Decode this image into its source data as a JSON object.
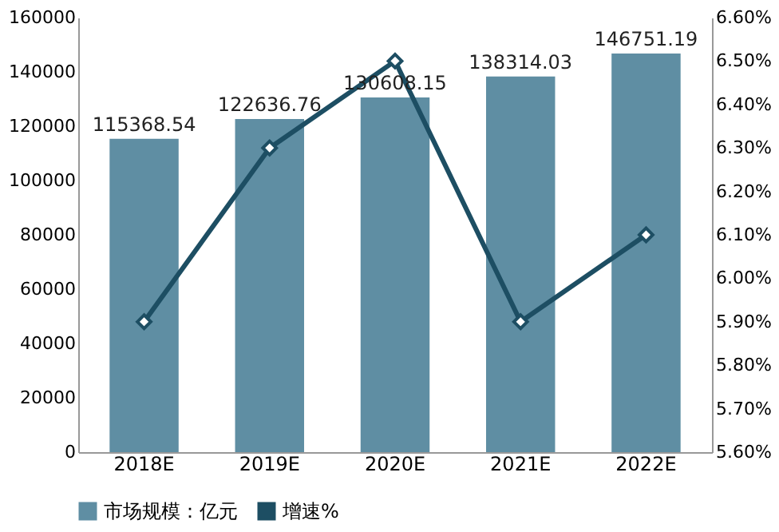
{
  "chart_data": {
    "type": "bar",
    "categories": [
      "2018E",
      "2019E",
      "2020E",
      "2021E",
      "2022E"
    ],
    "series": [
      {
        "name": "市场规模：亿元",
        "color": "#5f8ea3",
        "values": [
          115368.54,
          122636.76,
          130608.15,
          138314.03,
          146751.19
        ],
        "value_labels": [
          "115368.54",
          "122636.76",
          "130608.15",
          "138314.03",
          "146751.19"
        ]
      },
      {
        "name": "增速%",
        "type": "line",
        "axis": "y2",
        "color": "#1d4e63",
        "marker": "diamond",
        "values": [
          5.9,
          6.3,
          6.5,
          5.9,
          6.1
        ]
      }
    ],
    "ylim": [
      0,
      160000
    ],
    "yticks": [
      0,
      20000,
      40000,
      60000,
      80000,
      100000,
      120000,
      140000,
      160000
    ],
    "y2lim": [
      5.6,
      6.6
    ],
    "y2ticks": [
      {
        "value": 5.6,
        "label": "5.60%"
      },
      {
        "value": 5.7,
        "label": "5.70%"
      },
      {
        "value": 5.8,
        "label": "5.80%"
      },
      {
        "value": 5.9,
        "label": "5.90%"
      },
      {
        "value": 6.0,
        "label": "6.00%"
      },
      {
        "value": 6.1,
        "label": "6.10%"
      },
      {
        "value": 6.2,
        "label": "6.20%"
      },
      {
        "value": 6.3,
        "label": "6.30%"
      },
      {
        "value": 6.4,
        "label": "6.40%"
      },
      {
        "value": 6.5,
        "label": "6.50%"
      },
      {
        "value": 6.6,
        "label": "6.60%"
      }
    ],
    "grid": false,
    "legend": "bottom"
  }
}
